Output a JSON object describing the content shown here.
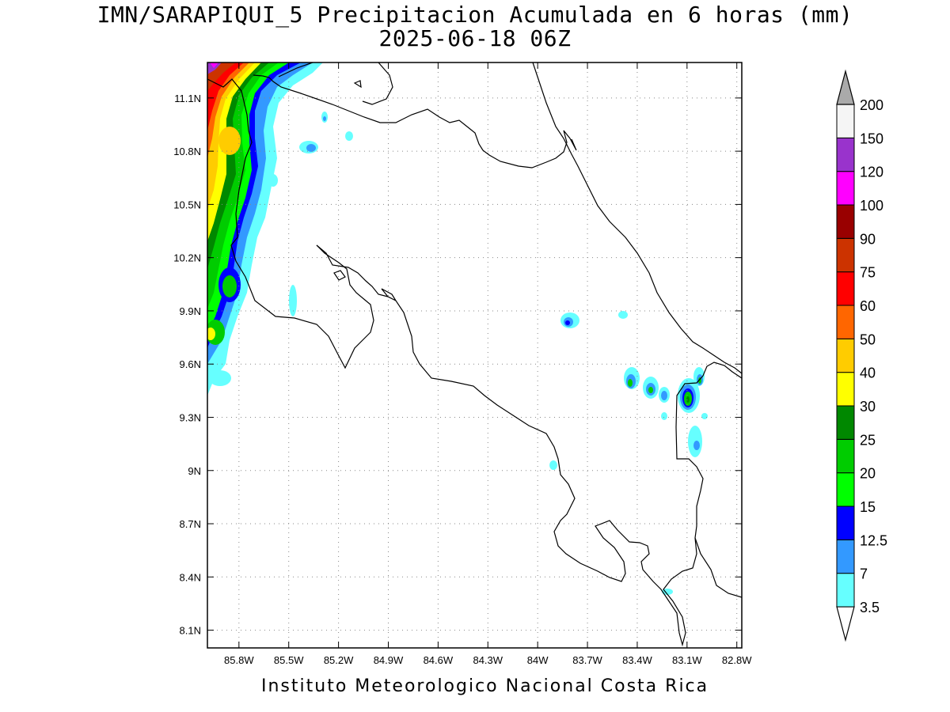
{
  "title": {
    "line1": "IMN/SARAPIQUI_5 Precipitacion Acumulada en 6 horas (mm)",
    "line2": "2025-06-18 06Z"
  },
  "footer": "Instituto Meteorologico Nacional Costa Rica",
  "map": {
    "lon_range": [
      -85.99,
      -82.77
    ],
    "lat_range": [
      8.0,
      11.3
    ],
    "x_ticks": [
      {
        "lon": -85.8,
        "label": "85.8W"
      },
      {
        "lon": -85.5,
        "label": "85.5W"
      },
      {
        "lon": -85.2,
        "label": "85.2W"
      },
      {
        "lon": -84.9,
        "label": "84.9W"
      },
      {
        "lon": -84.6,
        "label": "84.6W"
      },
      {
        "lon": -84.3,
        "label": "84.3W"
      },
      {
        "lon": -84.0,
        "label": "84W"
      },
      {
        "lon": -83.7,
        "label": "83.7W"
      },
      {
        "lon": -83.4,
        "label": "83.4W"
      },
      {
        "lon": -83.1,
        "label": "83.1W"
      },
      {
        "lon": -82.8,
        "label": "82.8W"
      }
    ],
    "y_ticks": [
      {
        "lat": 11.1,
        "label": "11.1N"
      },
      {
        "lat": 10.8,
        "label": "10.8N"
      },
      {
        "lat": 10.5,
        "label": "10.5N"
      },
      {
        "lat": 10.2,
        "label": "10.2N"
      },
      {
        "lat": 9.9,
        "label": "9.9N"
      },
      {
        "lat": 9.6,
        "label": "9.6N"
      },
      {
        "lat": 9.3,
        "label": "9.3N"
      },
      {
        "lat": 9.0,
        "label": "9N"
      },
      {
        "lat": 8.7,
        "label": "8.7N"
      },
      {
        "lat": 8.4,
        "label": "8.4N"
      },
      {
        "lat": 8.1,
        "label": "8.1N"
      }
    ],
    "grid": true
  },
  "colorbar": {
    "levels": [
      {
        "label": "3.5",
        "color": "#66ffff"
      },
      {
        "label": "7",
        "color": "#3399ff"
      },
      {
        "label": "12.5",
        "color": "#0000ff"
      },
      {
        "label": "15",
        "color": "#00ff00"
      },
      {
        "label": "20",
        "color": "#00cc00"
      },
      {
        "label": "25",
        "color": "#008800"
      },
      {
        "label": "30",
        "color": "#ffff00"
      },
      {
        "label": "40",
        "color": "#ffcc00"
      },
      {
        "label": "50",
        "color": "#ff6600"
      },
      {
        "label": "60",
        "color": "#ff0000"
      },
      {
        "label": "75",
        "color": "#cc3300"
      },
      {
        "label": "90",
        "color": "#990000"
      },
      {
        "label": "100",
        "color": "#ff00ff"
      },
      {
        "label": "120",
        "color": "#9933cc"
      },
      {
        "label": "150",
        "color": "#f5f5f5"
      },
      {
        "label": "200",
        "color": "#aaaaaa"
      }
    ]
  }
}
